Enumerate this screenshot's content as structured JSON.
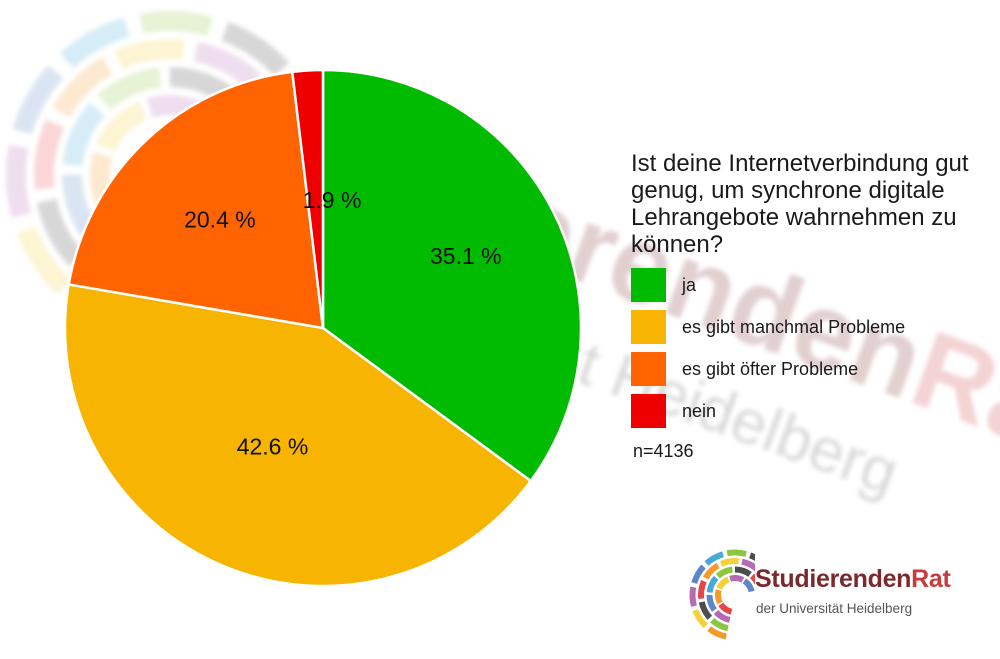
{
  "chart_data": {
    "type": "pie",
    "title": "Ist deine Internetverbindung gut genug, um synchrone digitale Lehrangebote wahrnehmen zu können?",
    "categories": [
      "ja",
      "es gibt manchmal Probleme",
      "es gibt öfter Probleme",
      "nein"
    ],
    "values": [
      35.1,
      42.6,
      20.4,
      1.9
    ],
    "value_labels": [
      "35.1 %",
      "42.6 %",
      "20.4 %",
      "1.9 %"
    ],
    "colors": [
      "#00bb00",
      "#f7b400",
      "#ff6400",
      "#ee0000"
    ],
    "start": "12 o'clock",
    "direction": "clockwise",
    "legend_position": "right",
    "annotation": "n=4136"
  },
  "watermark": {
    "name_part1": "Studierenden",
    "name_part2": "Rat",
    "subtitle": "der Universität Heidelberg"
  },
  "logo": {
    "name_part1": "Studierenden",
    "name_part2": "Rat",
    "subtitle": "der Universität Heidelberg",
    "arc_colors": [
      "#e7454a",
      "#f39a2b",
      "#f6cf3a",
      "#b46bb4",
      "#5b86c9",
      "#46a9d8",
      "#8cc63f",
      "#4c4c4c"
    ]
  }
}
